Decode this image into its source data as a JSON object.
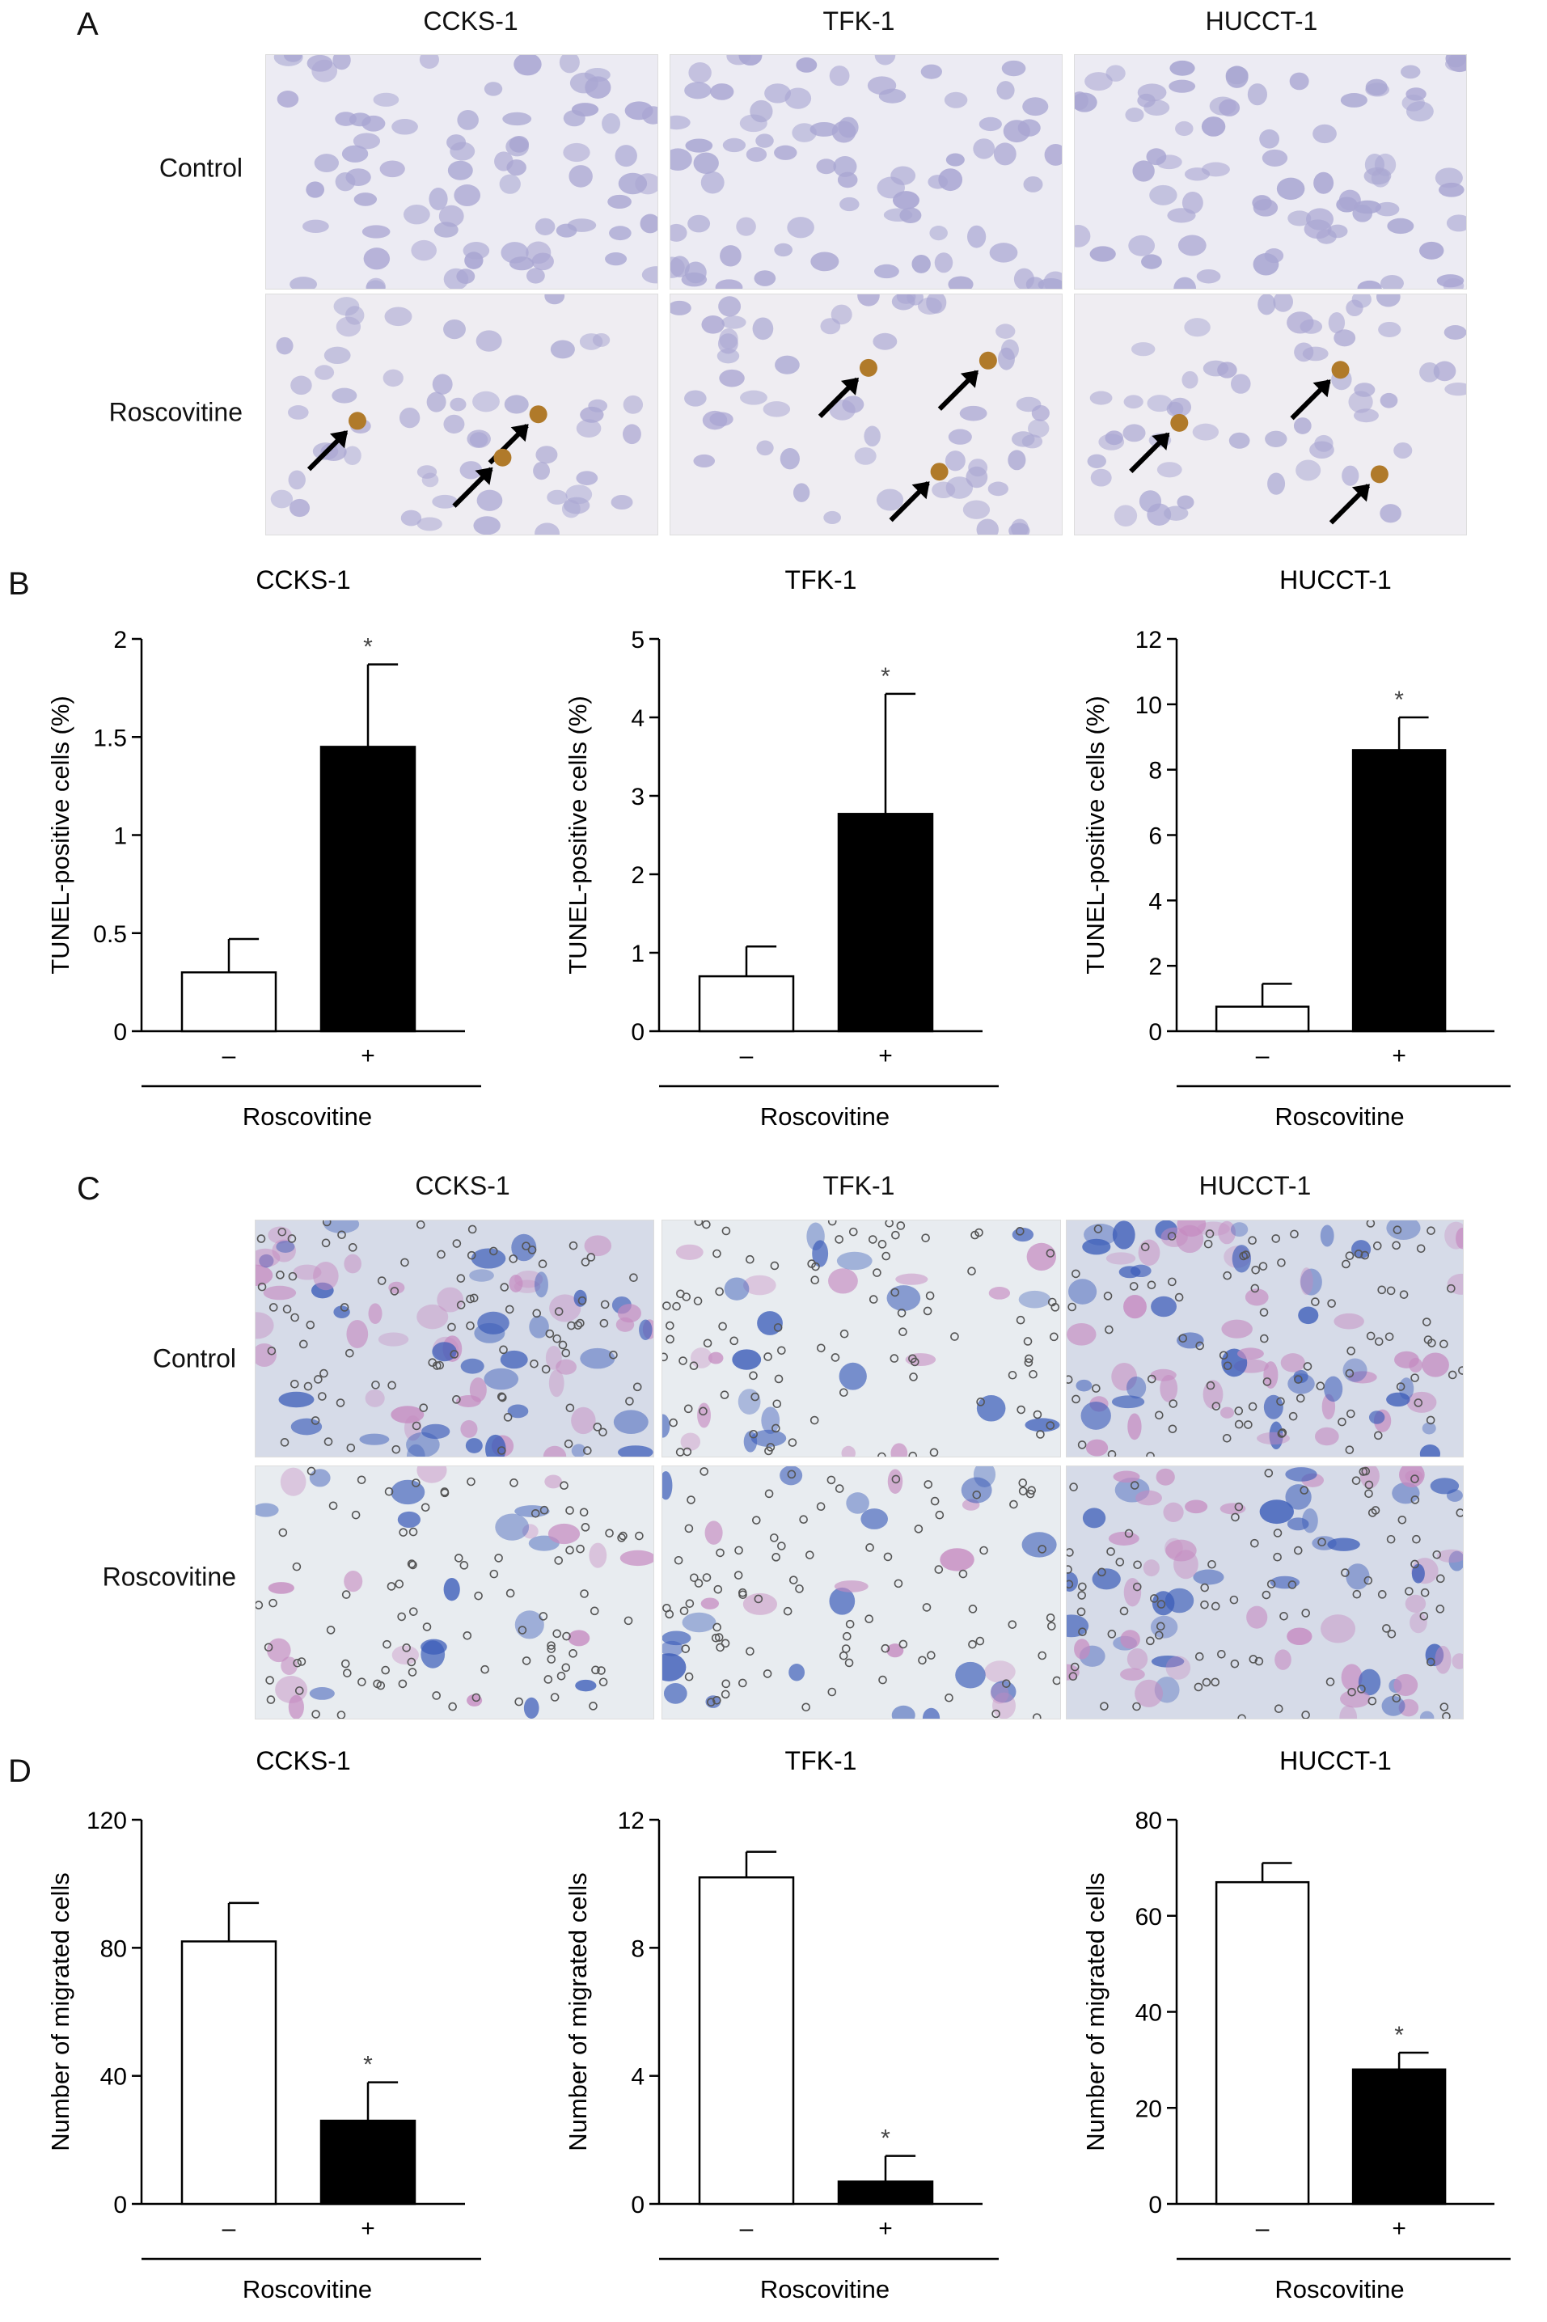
{
  "panels": {
    "A": {
      "letter": "A",
      "columns": [
        "CCKS-1",
        "TFK-1",
        "HUCCT-1"
      ],
      "rows": [
        "Control",
        "Roscovitine"
      ]
    },
    "B": {
      "letter": "B"
    },
    "C": {
      "letter": "C",
      "columns": [
        "CCKS-1",
        "TFK-1",
        "HUCCT-1"
      ],
      "rows": [
        "Control",
        "Roscovitine"
      ]
    },
    "D": {
      "letter": "D"
    }
  },
  "colors": {
    "tunel_nuclei": "#a9a6d2",
    "tunel_positive": "#b07a2a",
    "invasion_bg_light": "#e8ecf0",
    "invasion_stain_blue": "#3a5bb8",
    "invasion_stain_pink": "#c58ac0",
    "bar_control": "#ffffff",
    "bar_treated": "#000000"
  },
  "chart_data": [
    {
      "type": "bar",
      "title": "CCKS-1",
      "ylabel": "TUNEL-positive cells (%)",
      "xlabel": "Roscovitine",
      "categories": [
        "–",
        "+"
      ],
      "values": [
        0.3,
        1.45
      ],
      "errors": [
        0.17,
        0.42
      ],
      "ylim": [
        0,
        2
      ],
      "yticks": [
        0,
        0.5,
        1,
        1.5,
        2
      ],
      "ytick_labels": [
        "0",
        "0.5",
        "1",
        "1.5",
        "2"
      ],
      "significance": [
        "",
        "*"
      ]
    },
    {
      "type": "bar",
      "title": "TFK-1",
      "ylabel": "TUNEL-positive cells (%)",
      "xlabel": "Roscovitine",
      "categories": [
        "–",
        "+"
      ],
      "values": [
        0.7,
        2.77
      ],
      "errors": [
        0.38,
        1.53
      ],
      "ylim": [
        0,
        5
      ],
      "yticks": [
        0,
        1,
        2,
        3,
        4,
        5
      ],
      "ytick_labels": [
        "0",
        "1",
        "2",
        "3",
        "4",
        "5"
      ],
      "significance": [
        "",
        "*"
      ]
    },
    {
      "type": "bar",
      "title": "HUCCT-1",
      "ylabel": "TUNEL-positive cells (%)",
      "xlabel": "Roscovitine",
      "categories": [
        "–",
        "+"
      ],
      "values": [
        0.75,
        8.6
      ],
      "errors": [
        0.7,
        1.0
      ],
      "ylim": [
        0,
        12
      ],
      "yticks": [
        0,
        2,
        4,
        6,
        8,
        10,
        12
      ],
      "ytick_labels": [
        "0",
        "2",
        "4",
        "6",
        "8",
        "10",
        "12"
      ],
      "significance": [
        "",
        "*"
      ]
    },
    {
      "type": "bar",
      "title": "CCKS-1",
      "ylabel": "Number of migrated cells",
      "xlabel": "Roscovitine",
      "categories": [
        "–",
        "+"
      ],
      "values": [
        82,
        26
      ],
      "errors": [
        12,
        12
      ],
      "ylim": [
        0,
        120
      ],
      "yticks": [
        0,
        40,
        80,
        120
      ],
      "ytick_labels": [
        "0",
        "40",
        "80",
        "120"
      ],
      "significance": [
        "",
        "*"
      ]
    },
    {
      "type": "bar",
      "title": "TFK-1",
      "ylabel": "Number of migrated cells",
      "xlabel": "Roscovitine",
      "categories": [
        "–",
        "+"
      ],
      "values": [
        10.2,
        0.7
      ],
      "errors": [
        0.8,
        0.8
      ],
      "ylim": [
        0,
        12
      ],
      "yticks": [
        0,
        4,
        8,
        12
      ],
      "ytick_labels": [
        "0",
        "4",
        "8",
        "12"
      ],
      "significance": [
        "",
        "*"
      ]
    },
    {
      "type": "bar",
      "title": "HUCCT-1",
      "ylabel": "Number of migrated cells",
      "xlabel": "Roscovitine",
      "categories": [
        "–",
        "+"
      ],
      "values": [
        67,
        28
      ],
      "errors": [
        4,
        3.5
      ],
      "ylim": [
        0,
        80
      ],
      "yticks": [
        0,
        20,
        40,
        60,
        80
      ],
      "ytick_labels": [
        "0",
        "20",
        "40",
        "60",
        "80"
      ],
      "significance": [
        "",
        "*"
      ]
    }
  ]
}
